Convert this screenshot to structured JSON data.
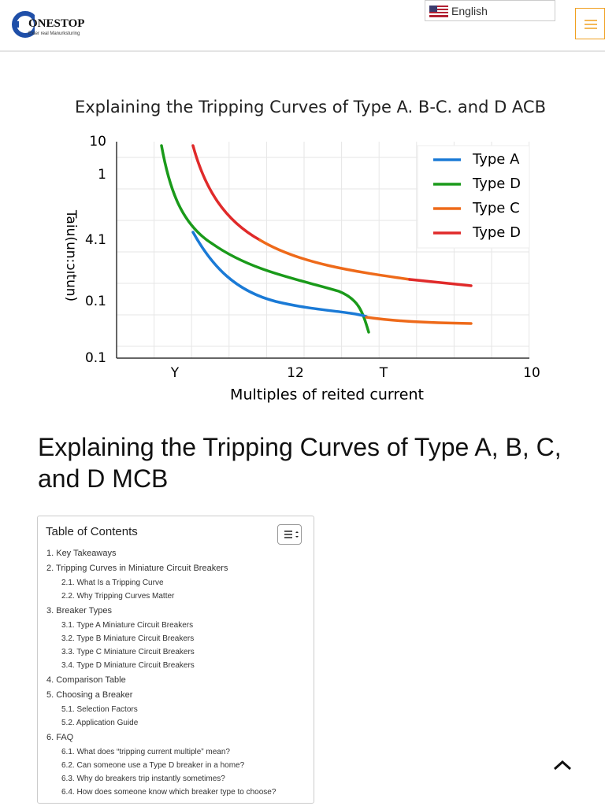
{
  "header": {
    "logo": "ONESTOP",
    "tagline": "Exter real Manurksturing",
    "language": "English"
  },
  "figure": {
    "title": "Explaining the Tripping Curves of Type A. B-C. and D ACB",
    "y_axis_label": "Taiu(un:ɔıtun)",
    "y_labels": [
      "10",
      "1",
      "4.1",
      "0.1",
      "0.1"
    ],
    "x_labels": [
      "Y",
      "12",
      "T",
      "10"
    ],
    "x_axis_label": "Multiples of reited current",
    "legend": [
      "Type A",
      "Type D",
      "Type C",
      "Type D"
    ]
  },
  "article": {
    "heading": "Explaining the Tripping Curves of Type A, B, C, and D MCB"
  },
  "toc": {
    "title": "Table of Contents",
    "items": [
      {
        "label": "1. Key Takeaways",
        "children": []
      },
      {
        "label": "2. Tripping Curves in Miniature Circuit Breakers",
        "children": [
          "2.1. What Is a Tripping Curve",
          "2.2. Why Tripping Curves Matter"
        ]
      },
      {
        "label": "3. Breaker Types",
        "children": [
          "3.1. Type A Miniature Circuit Breakers",
          "3.2. Type B Miniature Circuit Breakers",
          "3.3. Type C Miniature Circuit Breakers",
          "3.4. Type D Miniature Circuit Breakers"
        ]
      },
      {
        "label": "4. Comparison Table",
        "children": []
      },
      {
        "label": "5. Choosing a Breaker",
        "children": [
          "5.1. Selection Factors",
          "5.2. Application Guide"
        ]
      },
      {
        "label": "6. FAQ",
        "children": [
          "6.1. What does “tripping current multiple” mean?",
          "6.2. Can someone use a Type D breaker in a home?",
          "6.3. Why do breakers trip instantly sometimes?",
          "6.4. How does someone know which breaker type to choose?"
        ]
      }
    ]
  }
}
